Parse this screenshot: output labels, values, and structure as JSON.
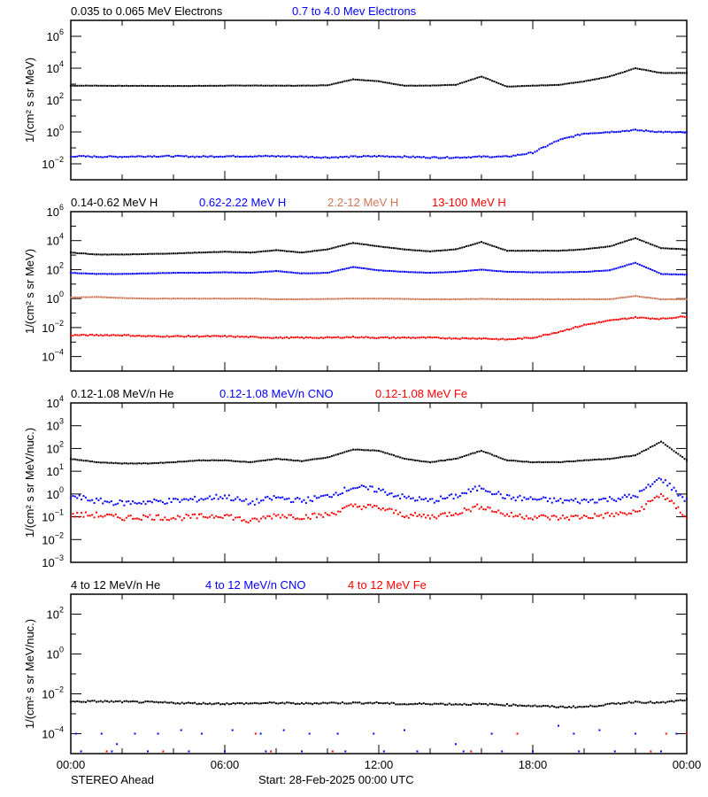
{
  "chart_data": [
    {
      "type": "scatter",
      "yscale": "log",
      "ylim": [
        0.001,
        10000000
      ],
      "ylabel": "1/(cm² s sr MeV)",
      "ytick_exponents": [
        -2,
        0,
        2,
        4,
        6
      ],
      "x_hours": [
        0,
        1,
        2,
        3,
        4,
        5,
        6,
        7,
        8,
        9,
        10,
        11,
        12,
        13,
        14,
        15,
        16,
        17,
        18,
        19,
        20,
        21,
        22,
        23,
        24
      ],
      "series": [
        {
          "name": "0.035 to 0.065 MeV Electrons",
          "color": "#000000",
          "values": [
            800,
            800,
            780,
            780,
            760,
            780,
            800,
            820,
            800,
            800,
            850,
            2000,
            1500,
            800,
            800,
            900,
            3000,
            700,
            800,
            900,
            1500,
            3000,
            10000,
            5000,
            5000
          ]
        },
        {
          "name": "0.7 to 4.0 Mev Electrons",
          "color": "#0000ff",
          "values": [
            0.03,
            0.028,
            0.028,
            0.03,
            0.03,
            0.028,
            0.03,
            0.03,
            0.03,
            0.028,
            0.025,
            0.028,
            0.03,
            0.028,
            0.025,
            0.025,
            0.028,
            0.028,
            0.05,
            0.3,
            0.8,
            1.0,
            1.3,
            1.0,
            0.9
          ]
        }
      ]
    },
    {
      "type": "scatter",
      "yscale": "log",
      "ylim": [
        1e-05,
        1000000
      ],
      "ylabel": "1/(cm² s sr MeV)",
      "ytick_exponents": [
        -4,
        -2,
        0,
        2,
        4,
        6
      ],
      "x_hours": [
        0,
        1,
        2,
        3,
        4,
        5,
        6,
        7,
        8,
        9,
        10,
        11,
        12,
        13,
        14,
        15,
        16,
        17,
        18,
        19,
        20,
        21,
        22,
        23,
        24
      ],
      "series": [
        {
          "name": "0.14-0.62 MeV H",
          "color": "#000000",
          "values": [
            1500,
            1100,
            1100,
            1200,
            1300,
            1500,
            1700,
            1500,
            2200,
            1500,
            2500,
            7000,
            4000,
            2500,
            1800,
            2500,
            8000,
            2000,
            2000,
            2000,
            2500,
            4000,
            15000,
            3000,
            2500
          ]
        },
        {
          "name": "0.62-2.22 MeV H",
          "color": "#0000ff",
          "values": [
            60,
            50,
            50,
            55,
            60,
            60,
            65,
            60,
            80,
            55,
            60,
            150,
            90,
            70,
            60,
            70,
            100,
            70,
            65,
            65,
            70,
            90,
            300,
            50,
            45
          ]
        },
        {
          "name": "2.2-12 MeV H",
          "color": "#cc7755",
          "values": [
            1.2,
            1.3,
            1.1,
            1.0,
            1.0,
            1.0,
            1.0,
            1.0,
            0.9,
            0.9,
            0.95,
            1.0,
            1.0,
            0.95,
            0.9,
            0.9,
            0.95,
            0.9,
            0.9,
            0.9,
            0.9,
            0.9,
            1.5,
            0.9,
            0.9
          ]
        },
        {
          "name": "13-100 MeV H",
          "color": "#ff0000",
          "values": [
            0.003,
            0.003,
            0.003,
            0.0025,
            0.0025,
            0.0025,
            0.0025,
            0.0022,
            0.002,
            0.002,
            0.002,
            0.0022,
            0.002,
            0.002,
            0.002,
            0.0018,
            0.0018,
            0.0015,
            0.002,
            0.005,
            0.015,
            0.03,
            0.05,
            0.04,
            0.06
          ]
        }
      ]
    },
    {
      "type": "scatter",
      "yscale": "log",
      "ylim": [
        0.001,
        10000
      ],
      "ylabel": "1/(cm² s sr MeV/nuc.)",
      "ytick_exponents": [
        -3,
        -2,
        -1,
        0,
        1,
        2,
        3,
        4
      ],
      "x_hours": [
        0,
        1,
        2,
        3,
        4,
        5,
        6,
        7,
        8,
        9,
        10,
        11,
        12,
        13,
        14,
        15,
        16,
        17,
        18,
        19,
        20,
        21,
        22,
        23,
        24
      ],
      "series": [
        {
          "name": "0.12-1.08 MeV/n He",
          "color": "#000000",
          "values": [
            35,
            25,
            22,
            22,
            25,
            30,
            30,
            25,
            35,
            28,
            40,
            90,
            80,
            35,
            25,
            35,
            80,
            30,
            25,
            25,
            30,
            35,
            50,
            200,
            30
          ]
        },
        {
          "name": "0.12-1.08 MeV/n CNO",
          "color": "#0000ff",
          "values": [
            0.8,
            0.5,
            0.4,
            0.45,
            0.5,
            0.6,
            0.8,
            0.4,
            0.7,
            0.5,
            0.8,
            2,
            1.5,
            0.7,
            0.5,
            0.8,
            2,
            0.7,
            0.6,
            0.5,
            0.5,
            0.6,
            0.8,
            5,
            0.5
          ]
        },
        {
          "name": "0.12-1.08 MeV Fe",
          "color": "#ff0000",
          "values": [
            0.12,
            0.12,
            0.09,
            0.1,
            0.09,
            0.1,
            0.12,
            0.06,
            0.12,
            0.1,
            0.12,
            0.3,
            0.25,
            0.12,
            0.1,
            0.15,
            0.3,
            0.12,
            0.1,
            0.09,
            0.1,
            0.12,
            0.15,
            1.0,
            0.1
          ]
        }
      ]
    },
    {
      "type": "scatter",
      "yscale": "log",
      "ylim": [
        1e-05,
        1000
      ],
      "ylabel": "1/(cm² s sr MeV/nuc.)",
      "ytick_exponents": [
        -4,
        -2,
        0,
        2
      ],
      "x_hours": [
        0,
        1,
        2,
        3,
        4,
        5,
        6,
        7,
        8,
        9,
        10,
        11,
        12,
        13,
        14,
        15,
        16,
        17,
        18,
        19,
        20,
        21,
        22,
        23,
        24
      ],
      "series": [
        {
          "name": "4 to 12 MeV/n He",
          "color": "#000000",
          "values": [
            0.004,
            0.0042,
            0.004,
            0.0038,
            0.0035,
            0.0033,
            0.0032,
            0.0033,
            0.0035,
            0.0032,
            0.0035,
            0.0035,
            0.0035,
            0.003,
            0.0032,
            0.003,
            0.003,
            0.0028,
            0.0025,
            0.0022,
            0.0022,
            0.003,
            0.004,
            0.0035,
            0.005
          ]
        },
        {
          "name": "4 to 12 MeV/n CNO",
          "color": "#0000ff",
          "points": [
            [
              0.2,
              0.0001
            ],
            [
              1.2,
              0.0001
            ],
            [
              1.8,
              3e-05
            ],
            [
              2.5,
              0.0001
            ],
            [
              3.4,
              0.0001
            ],
            [
              4.3,
              0.00015
            ],
            [
              5.1,
              0.0001
            ],
            [
              6.3,
              0.00015
            ],
            [
              7.4,
              0.0001
            ],
            [
              8.3,
              0.00015
            ],
            [
              9.3,
              0.0001
            ],
            [
              10.4,
              0.0001
            ],
            [
              11.8,
              0.0001
            ],
            [
              13.0,
              0.00015
            ],
            [
              15.0,
              3e-05
            ],
            [
              16.4,
              0.0001
            ],
            [
              19.0,
              0.00025
            ],
            [
              19.6,
              0.0001
            ],
            [
              20.6,
              0.00015
            ],
            [
              22.0,
              0.0001
            ],
            [
              23.6,
              0.0001
            ],
            [
              0.4,
              1.3e-05
            ],
            [
              1.6,
              1.3e-05
            ],
            [
              3.0,
              1.3e-05
            ],
            [
              4.6,
              1.3e-05
            ],
            [
              6.0,
              1.3e-05
            ],
            [
              7.6,
              1.3e-05
            ],
            [
              9.0,
              1.3e-05
            ],
            [
              10.7,
              1.3e-05
            ],
            [
              12.2,
              1.3e-05
            ],
            [
              13.5,
              1.3e-05
            ],
            [
              15.3,
              1.3e-05
            ],
            [
              16.8,
              1.3e-05
            ],
            [
              18.0,
              1.3e-05
            ],
            [
              19.8,
              1.3e-05
            ],
            [
              21.2,
              1.3e-05
            ],
            [
              23.0,
              1.3e-05
            ]
          ]
        },
        {
          "name": "4 to 12 MeV Fe",
          "color": "#ff0000",
          "points": [
            [
              1.4,
              1.3e-05
            ],
            [
              3.6,
              1.3e-05
            ],
            [
              7.2,
              0.0001
            ],
            [
              7.8,
              1.3e-05
            ],
            [
              10.2,
              1.3e-05
            ],
            [
              15.6,
              1.3e-05
            ],
            [
              17.4,
              0.0001
            ],
            [
              22.6,
              1.3e-05
            ],
            [
              23.2,
              0.0001
            ],
            [
              24.0,
              0.0001
            ]
          ]
        }
      ]
    }
  ],
  "x_axis": {
    "tick_labels": [
      "00:00",
      "06:00",
      "12:00",
      "18:00",
      "00:00"
    ],
    "range_hours": [
      0,
      24
    ]
  },
  "footer": {
    "spacecraft": "STEREO Ahead",
    "start": "Start: 28-Feb-2025 00:00 UTC"
  }
}
